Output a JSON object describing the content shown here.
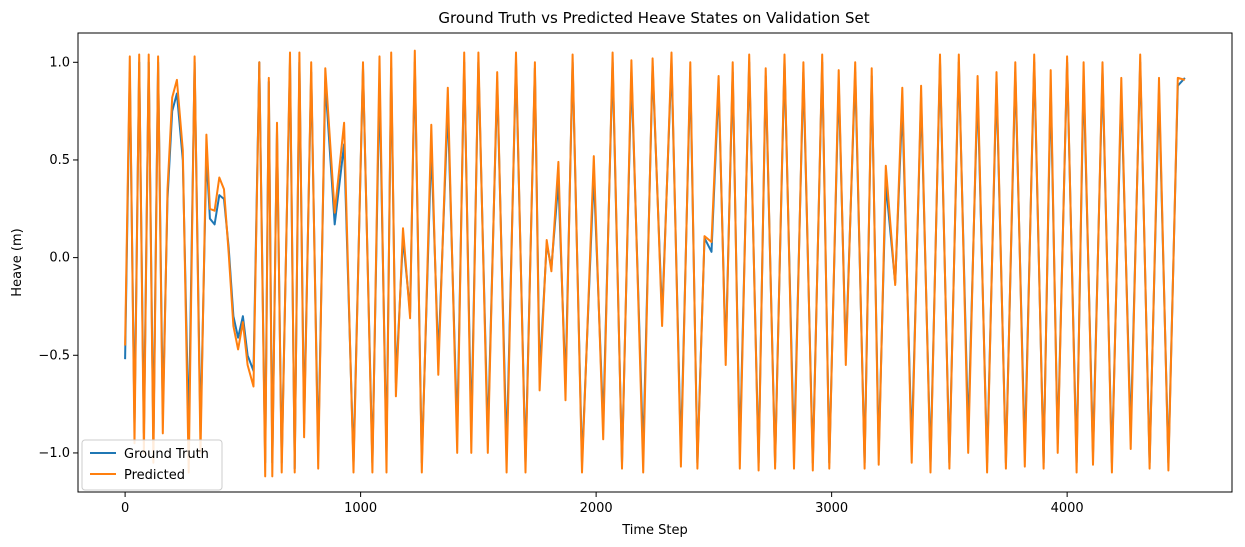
{
  "chart_data": {
    "type": "line",
    "title": "Ground Truth vs Predicted Heave States on Validation Set",
    "xlabel": "Time Step",
    "ylabel": "Heave (m)",
    "xlim": [
      -200,
      4700
    ],
    "ylim": [
      -1.2,
      1.15
    ],
    "xticks": [
      0,
      1000,
      2000,
      3000,
      4000
    ],
    "yticks": [
      -1.0,
      -0.5,
      0.0,
      0.5,
      1.0
    ],
    "xtick_labels": [
      "0",
      "1000",
      "2000",
      "3000",
      "4000"
    ],
    "ytick_labels": [
      "−1.0",
      "−0.5",
      "0.0",
      "0.5",
      "1.0"
    ],
    "grid": false,
    "legend": "lower-left",
    "series": [
      {
        "name": "Ground Truth",
        "color": "#1f77b4",
        "x": [
          0,
          20,
          40,
          60,
          80,
          100,
          120,
          140,
          160,
          180,
          200,
          220,
          245,
          270,
          295,
          320,
          345,
          360,
          380,
          400,
          420,
          440,
          460,
          480,
          500,
          520,
          545,
          570,
          595,
          610,
          625,
          645,
          665,
          700,
          720,
          740,
          760,
          790,
          820,
          850,
          890,
          930,
          970,
          1010,
          1050,
          1080,
          1110,
          1130,
          1150,
          1180,
          1210,
          1230,
          1260,
          1300,
          1330,
          1370,
          1410,
          1440,
          1470,
          1500,
          1540,
          1580,
          1620,
          1660,
          1700,
          1740,
          1760,
          1790,
          1810,
          1840,
          1870,
          1900,
          1940,
          1990,
          2030,
          2070,
          2110,
          2150,
          2200,
          2240,
          2280,
          2320,
          2360,
          2400,
          2430,
          2460,
          2490,
          2520,
          2550,
          2580,
          2610,
          2650,
          2690,
          2720,
          2760,
          2800,
          2840,
          2880,
          2920,
          2960,
          2990,
          3030,
          3060,
          3100,
          3140,
          3170,
          3200,
          3230,
          3270,
          3300,
          3340,
          3380,
          3420,
          3460,
          3500,
          3540,
          3580,
          3620,
          3660,
          3700,
          3740,
          3780,
          3820,
          3860,
          3900,
          3930,
          3960,
          4000,
          4040,
          4070,
          4110,
          4150,
          4190,
          4230,
          4270,
          4310,
          4350,
          4390,
          4430,
          4470,
          4500
        ],
        "y": [
          -0.52,
          0.95,
          -0.85,
          1.0,
          -0.9,
          1.0,
          -0.95,
          1.0,
          -0.8,
          0.3,
          0.75,
          0.84,
          0.5,
          -0.9,
          1.0,
          -0.9,
          0.53,
          0.2,
          0.17,
          0.32,
          0.3,
          0.05,
          -0.3,
          -0.41,
          -0.3,
          -0.5,
          -0.58,
          1.0,
          -1.05,
          0.9,
          -1.05,
          0.65,
          -1.05,
          1.0,
          -1.08,
          1.0,
          -0.85,
          0.95,
          -1.0,
          0.9,
          0.17,
          0.58,
          -1.05,
          0.97,
          -1.05,
          0.9,
          -1.0,
          0.97,
          -0.64,
          0.1,
          -0.28,
          1.0,
          -1.05,
          0.57,
          -0.52,
          0.77,
          -0.9,
          1.0,
          -0.9,
          1.0,
          -0.92,
          0.9,
          -1.0,
          1.0,
          -1.05,
          0.97,
          -0.6,
          0.07,
          -0.05,
          0.39,
          -0.65,
          1.0,
          -1.05,
          0.43,
          -0.85,
          1.0,
          -1.05,
          0.95,
          -1.0,
          0.98,
          -0.3,
          1.0,
          -1.0,
          0.95,
          -1.05,
          0.1,
          0.03,
          0.88,
          -0.5,
          0.95,
          -1.0,
          1.0,
          -1.05,
          0.93,
          -1.05,
          1.0,
          -1.0,
          0.95,
          -1.05,
          1.0,
          -1.05,
          0.9,
          -0.5,
          0.95,
          -1.05,
          0.93,
          -1.0,
          0.38,
          -0.13,
          0.78,
          -0.97,
          0.82,
          -1.05,
          1.0,
          -1.05,
          1.0,
          -0.9,
          0.86,
          -1.05,
          0.9,
          -1.05,
          0.95,
          -1.0,
          1.0,
          -1.05,
          0.88,
          -0.95,
          1.0,
          -1.05,
          0.93,
          -1.0,
          0.95,
          -1.05,
          0.85,
          -0.9,
          1.0,
          -1.05,
          0.85,
          -1.05,
          0.88,
          0.92
        ]
      },
      {
        "name": "Predicted",
        "color": "#ff7f0e",
        "x": [
          0,
          20,
          40,
          60,
          80,
          100,
          120,
          140,
          160,
          180,
          200,
          220,
          245,
          270,
          295,
          320,
          345,
          360,
          380,
          400,
          420,
          440,
          460,
          480,
          500,
          520,
          545,
          570,
          595,
          610,
          625,
          645,
          665,
          700,
          720,
          740,
          760,
          790,
          820,
          850,
          890,
          930,
          970,
          1010,
          1050,
          1080,
          1110,
          1130,
          1150,
          1180,
          1210,
          1230,
          1260,
          1300,
          1330,
          1370,
          1410,
          1440,
          1470,
          1500,
          1540,
          1580,
          1620,
          1660,
          1700,
          1740,
          1760,
          1790,
          1810,
          1840,
          1870,
          1900,
          1940,
          1990,
          2030,
          2070,
          2110,
          2150,
          2200,
          2240,
          2280,
          2320,
          2360,
          2400,
          2430,
          2460,
          2490,
          2520,
          2550,
          2580,
          2610,
          2650,
          2690,
          2720,
          2760,
          2800,
          2840,
          2880,
          2920,
          2960,
          2990,
          3030,
          3060,
          3100,
          3140,
          3170,
          3200,
          3230,
          3270,
          3300,
          3340,
          3380,
          3420,
          3460,
          3500,
          3540,
          3580,
          3620,
          3660,
          3700,
          3740,
          3780,
          3820,
          3860,
          3900,
          3930,
          3960,
          4000,
          4040,
          4070,
          4110,
          4150,
          4190,
          4230,
          4270,
          4310,
          4350,
          4390,
          4430,
          4470,
          4500
        ],
        "y": [
          -0.45,
          1.03,
          -0.95,
          1.04,
          -1.0,
          1.04,
          -1.05,
          1.03,
          -0.9,
          0.35,
          0.82,
          0.91,
          0.55,
          -1.1,
          1.03,
          -1.0,
          0.63,
          0.25,
          0.24,
          0.41,
          0.35,
          0.02,
          -0.35,
          -0.47,
          -0.33,
          -0.55,
          -0.66,
          1.0,
          -1.12,
          0.92,
          -1.12,
          0.69,
          -1.1,
          1.05,
          -1.1,
          1.05,
          -0.92,
          1.0,
          -1.08,
          0.97,
          0.23,
          0.69,
          -1.1,
          1.0,
          -1.1,
          1.03,
          -1.1,
          1.05,
          -0.71,
          0.15,
          -0.31,
          1.06,
          -1.1,
          0.68,
          -0.6,
          0.87,
          -1.0,
          1.05,
          -1.0,
          1.05,
          -1.0,
          0.95,
          -1.1,
          1.05,
          -1.1,
          1.0,
          -0.68,
          0.09,
          -0.07,
          0.49,
          -0.73,
          1.04,
          -1.1,
          0.52,
          -0.93,
          1.05,
          -1.08,
          1.01,
          -1.1,
          1.02,
          -0.35,
          1.05,
          -1.07,
          1.0,
          -1.08,
          0.11,
          0.08,
          0.93,
          -0.55,
          1.0,
          -1.08,
          1.04,
          -1.09,
          0.97,
          -1.08,
          1.04,
          -1.08,
          1.0,
          -1.09,
          1.04,
          -1.08,
          0.96,
          -0.55,
          1.0,
          -1.08,
          0.97,
          -1.06,
          0.47,
          -0.14,
          0.87,
          -1.05,
          0.88,
          -1.1,
          1.04,
          -1.08,
          1.04,
          -1.0,
          0.93,
          -1.1,
          0.95,
          -1.08,
          1.0,
          -1.07,
          1.04,
          -1.08,
          0.96,
          -1.0,
          1.03,
          -1.1,
          1.0,
          -1.06,
          1.0,
          -1.1,
          0.92,
          -0.98,
          1.04,
          -1.08,
          0.92,
          -1.09,
          0.92,
          0.91
        ]
      }
    ]
  }
}
